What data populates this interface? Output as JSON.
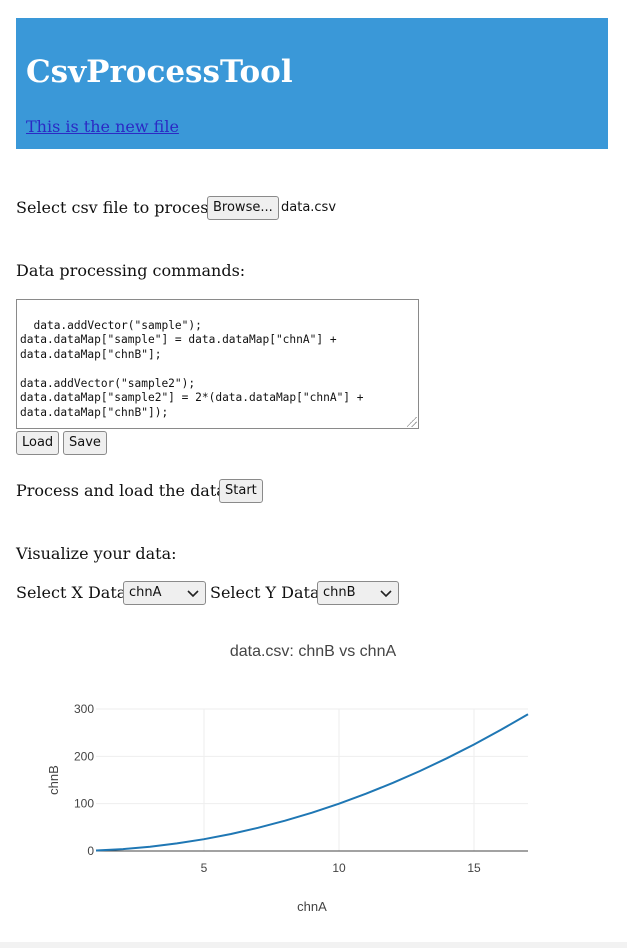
{
  "header": {
    "title": "CsvProcessTool",
    "link_text": "This is the new file"
  },
  "file_select": {
    "label": "Select csv file to process:",
    "browse_label": "Browse...",
    "file_name": "data.csv"
  },
  "commands": {
    "label": "Data processing commands:",
    "text": "data.addVector(\"sample\");\ndata.dataMap[\"sample\"] = data.dataMap[\"chnA\"] +\ndata.dataMap[\"chnB\"];\n\ndata.addVector(\"sample2\");\ndata.dataMap[\"sample2\"] = 2*(data.dataMap[\"chnA\"] +\ndata.dataMap[\"chnB\"]);",
    "load_label": "Load",
    "save_label": "Save"
  },
  "process": {
    "label": "Process and load the data:",
    "start_label": "Start"
  },
  "visualize": {
    "label": "Visualize your data:",
    "x_label": "Select X Data:",
    "x_value": "chnA",
    "y_label": "Select Y Data:",
    "y_value": "chnB"
  },
  "chart_data": {
    "type": "line",
    "title": "data.csv: chnB vs chnA",
    "xlabel": "chnA",
    "ylabel": "chnB",
    "xlim": [
      1,
      17
    ],
    "ylim": [
      0,
      300
    ],
    "grid": true,
    "line_color": "#1f77b4",
    "x_ticks": [
      5,
      10,
      15
    ],
    "y_ticks": [
      0,
      100,
      200,
      300
    ],
    "series": [
      {
        "x": [
          1,
          2,
          3,
          4,
          5,
          6,
          7,
          8,
          9,
          10,
          11,
          12,
          13,
          14,
          15,
          16,
          17
        ],
        "values": [
          1,
          4,
          9,
          16,
          25,
          36,
          49,
          64,
          81,
          100,
          121,
          144,
          169,
          196,
          225,
          256,
          289
        ]
      }
    ]
  },
  "colors": {
    "header_bg": "#3a98d8",
    "header_title": "#ffffff",
    "link": "#2b2ac4"
  }
}
